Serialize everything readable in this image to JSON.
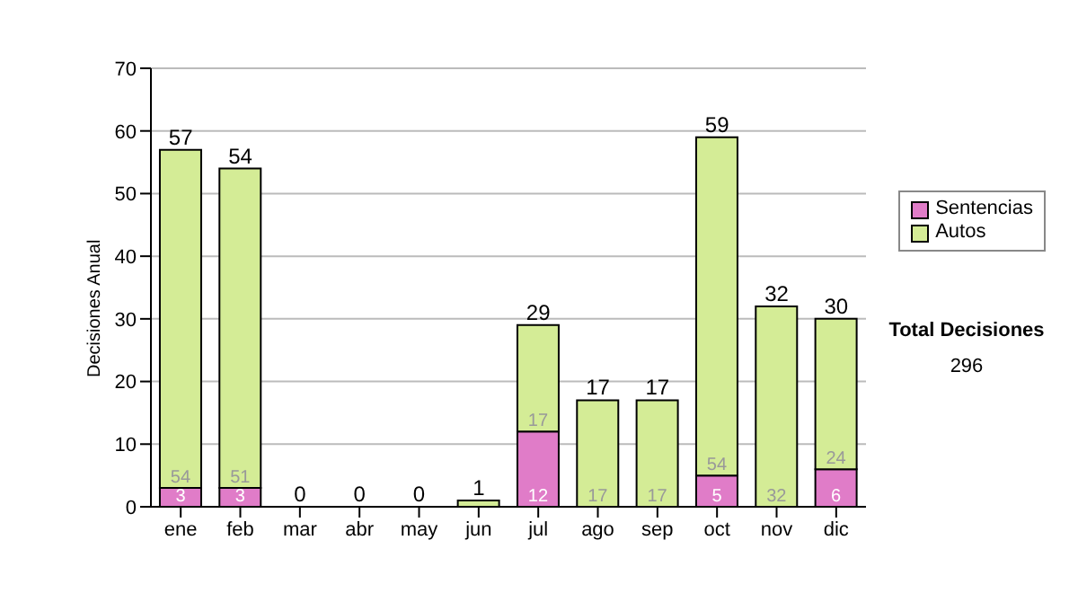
{
  "chart_data": {
    "type": "bar",
    "stacked": true,
    "ylabel": "Decisiones Anual",
    "categories": [
      "ene",
      "feb",
      "mar",
      "abr",
      "may",
      "jun",
      "jul",
      "ago",
      "sep",
      "oct",
      "nov",
      "dic"
    ],
    "series": [
      {
        "name": "Sentencias",
        "color": "#e07cc8",
        "values": [
          3,
          3,
          0,
          0,
          0,
          0,
          12,
          0,
          0,
          5,
          0,
          6
        ],
        "value_labels": [
          "3",
          "3",
          null,
          null,
          null,
          null,
          "12",
          null,
          null,
          "5",
          null,
          "6"
        ]
      },
      {
        "name": "Autos",
        "color": "#d4ec96",
        "values": [
          54,
          51,
          0,
          0,
          0,
          1,
          17,
          17,
          17,
          54,
          32,
          24
        ],
        "value_labels": [
          "54",
          "51",
          null,
          null,
          null,
          null,
          "17",
          "17",
          "17",
          "54",
          "32",
          "24"
        ]
      }
    ],
    "totals": [
      "57",
      "54",
      "0",
      "0",
      "0",
      "1",
      "29",
      "17",
      "17",
      "59",
      "32",
      "30"
    ],
    "ylim": [
      0,
      70
    ],
    "yticks": [
      0,
      10,
      20,
      30,
      40,
      50,
      60,
      70
    ],
    "grid": "y",
    "legend": "right",
    "annotations": [
      "Total Decisiones",
      "296"
    ]
  }
}
